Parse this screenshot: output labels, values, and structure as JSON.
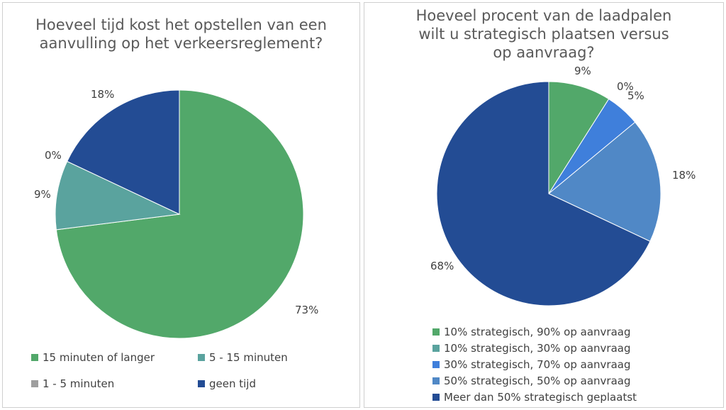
{
  "chart_data": [
    {
      "type": "pie",
      "title": "Hoeveel tijd kost het opstellen van een aanvulling op het verkeersreglement?",
      "categories": [
        "15 minuten of langer",
        "5 - 15 minuten",
        "1 - 5 minuten",
        "geen tijd"
      ],
      "values": [
        73,
        9,
        0,
        18
      ],
      "labels": [
        "73%",
        "9%",
        "0%",
        "18%"
      ],
      "colors": [
        "#52a86a",
        "#5aa39e",
        "#9e9e9e",
        "#234c94"
      ],
      "legend": "bottom"
    },
    {
      "type": "pie",
      "title": "Hoeveel procent van de laadpalen wilt u strategisch plaatsen versus op aanvraag?",
      "categories": [
        "10% strategisch, 90% op aanvraag",
        "10% strategisch, 30% op aanvraag",
        "30% strategisch, 70% op aanvraag",
        "50% strategisch, 50% op aanvraag",
        "Meer dan 50% strategisch geplaatst"
      ],
      "values": [
        9,
        0,
        5,
        18,
        68
      ],
      "labels": [
        "9%",
        "0%",
        "5%",
        "18%",
        "68%"
      ],
      "colors": [
        "#52a86a",
        "#5aa39e",
        "#3f7fdb",
        "#5088c6",
        "#234c94"
      ],
      "legend": "bottom"
    }
  ]
}
